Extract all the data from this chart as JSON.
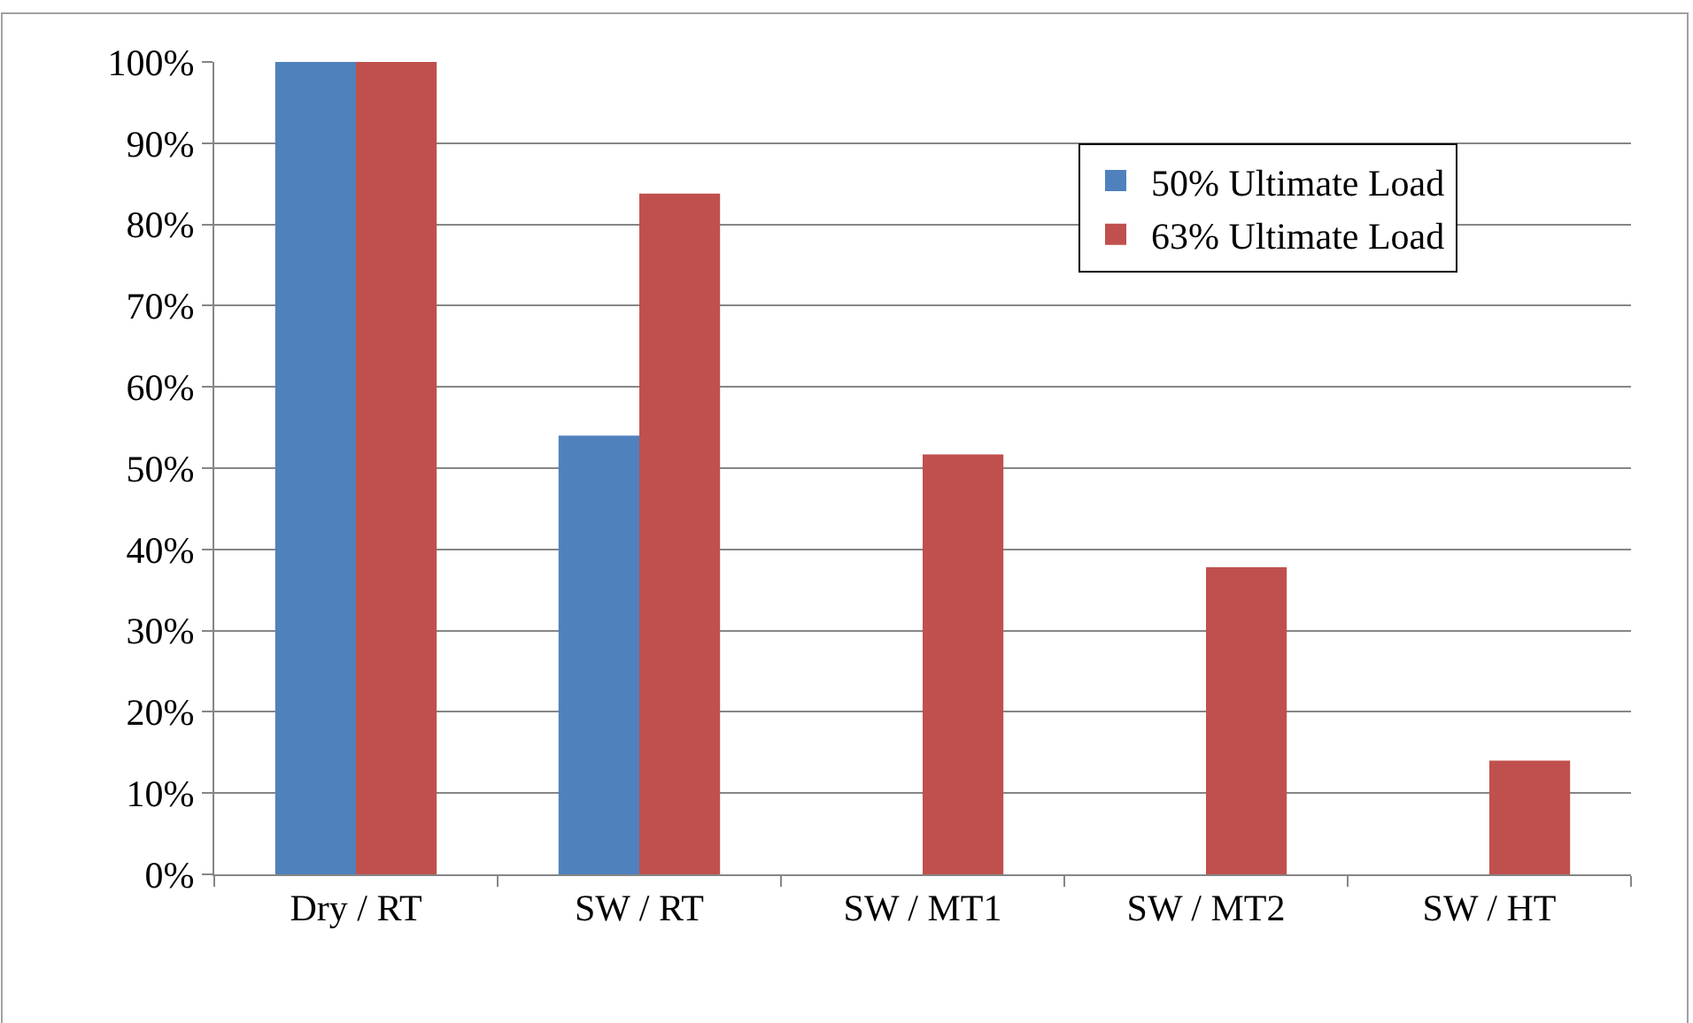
{
  "chart_data": {
    "type": "bar",
    "categories": [
      "Dry / RT",
      "SW / RT",
      "SW / MT1",
      "SW / MT2",
      "SW / HT"
    ],
    "series": [
      {
        "name": "50% Ultimate Load",
        "color": "#4f81bd",
        "values": [
          100,
          54,
          null,
          null,
          null
        ]
      },
      {
        "name": "63% Ultimate Load",
        "color": "#c0504d",
        "values": [
          100,
          83.8,
          51.7,
          37.8,
          14
        ]
      }
    ],
    "ylim": [
      0,
      100
    ],
    "yticks": [
      {
        "value": 0,
        "label": "0%"
      },
      {
        "value": 10,
        "label": "10%"
      },
      {
        "value": 20,
        "label": "20%"
      },
      {
        "value": 30,
        "label": "30%"
      },
      {
        "value": 40,
        "label": "40%"
      },
      {
        "value": 50,
        "label": "50%"
      },
      {
        "value": 60,
        "label": "60%"
      },
      {
        "value": 70,
        "label": "70%"
      },
      {
        "value": 80,
        "label": "80%"
      },
      {
        "value": 90,
        "label": "90%"
      },
      {
        "value": 100,
        "label": "100%"
      }
    ],
    "grid": "y",
    "legend": "top right"
  }
}
